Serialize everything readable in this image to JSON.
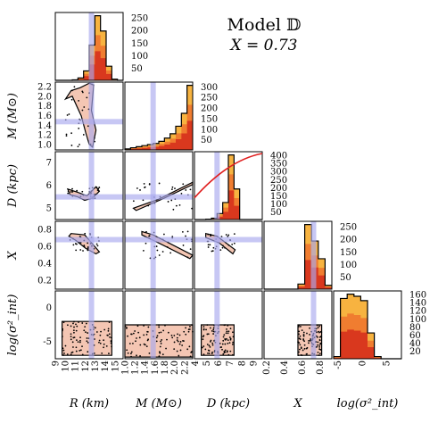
{
  "title": "Model 𝔻",
  "subtitle": "X = 0.73",
  "chart_data": {
    "type": "scatter",
    "kind": "corner plot (posterior distributions)",
    "parameters": [
      {
        "key": "R",
        "label": "R (km)",
        "range": [
          9,
          15
        ],
        "ticks": [
          "9",
          "10",
          "11",
          "12",
          "13",
          "14",
          "15"
        ],
        "truth": 12.2
      },
      {
        "key": "M",
        "label": "M (M⊙)",
        "range": [
          1.0,
          2.2
        ],
        "ticks": [
          "1.0",
          "1.2",
          "1.4",
          "1.6",
          "1.8",
          "2.0",
          "2.2"
        ],
        "truth": 1.5
      },
      {
        "key": "D",
        "label": "D (kpc)",
        "range": [
          4,
          10
        ],
        "ticks": [
          "4",
          "5",
          "6",
          "7",
          "8",
          "9"
        ],
        "truth": 6.0
      },
      {
        "key": "X",
        "label": "X",
        "range": [
          0,
          1
        ],
        "ticks": [
          "0.2",
          "0.4",
          "0.6",
          "0.8"
        ],
        "truth": 0.73
      },
      {
        "key": "logsig",
        "label": "log(σ²_int)",
        "range": [
          -10,
          10
        ],
        "ticks": [
          "-5",
          "0",
          "5"
        ],
        "truth": null
      }
    ],
    "left_axis_labels": [
      {
        "param": "M",
        "text": "M (M⊙)",
        "ticks": [
          "1.0",
          "1.2",
          "1.4",
          "1.6",
          "1.8",
          "2.0",
          "2.2"
        ]
      },
      {
        "param": "D",
        "text": "D (kpc)",
        "ticks": [
          "5",
          "6",
          "7"
        ]
      },
      {
        "param": "X",
        "text": "X",
        "ticks": [
          "0.2",
          "0.4",
          "0.6",
          "0.8"
        ]
      },
      {
        "param": "logsig",
        "text": "log(σ²_int)",
        "ticks": [
          "-5",
          "0"
        ]
      }
    ],
    "histogram_count_ticks": [
      [
        "50",
        "100",
        "150",
        "200",
        "250"
      ],
      [
        "50",
        "100",
        "150",
        "200",
        "250",
        "300"
      ],
      [
        "50",
        "100",
        "150",
        "200",
        "250",
        "300",
        "350",
        "400"
      ],
      [
        "50",
        "100",
        "150",
        "200",
        "250"
      ],
      [
        "20",
        "40",
        "60",
        "80",
        "100",
        "120",
        "140",
        "160"
      ]
    ],
    "histograms": [
      {
        "param": "R",
        "bins": [
          9.0,
          9.5,
          10.0,
          10.5,
          11.0,
          11.5,
          12.0,
          12.5,
          13.0,
          13.5,
          14.0,
          14.5,
          15.0
        ],
        "counts": [
          0,
          0,
          0,
          2,
          10,
          40,
          150,
          275,
          210,
          60,
          5,
          0,
          0
        ]
      },
      {
        "param": "M",
        "bins": [
          1.0,
          1.1,
          1.2,
          1.3,
          1.4,
          1.5,
          1.6,
          1.7,
          1.8,
          1.9,
          2.0,
          2.1,
          2.2
        ],
        "counts": [
          5,
          10,
          15,
          20,
          25,
          30,
          40,
          55,
          75,
          110,
          170,
          300
        ]
      },
      {
        "param": "D",
        "bins": [
          4.0,
          4.5,
          5.0,
          5.5,
          6.0,
          6.5,
          7.0,
          7.5,
          8.0,
          8.5,
          9.0,
          9.5,
          10.0
        ],
        "counts": [
          0,
          0,
          2,
          8,
          35,
          100,
          380,
          180,
          0,
          0,
          0,
          0
        ]
      },
      {
        "param": "X",
        "bins": [
          0.0,
          0.1,
          0.2,
          0.3,
          0.4,
          0.5,
          0.6,
          0.7,
          0.8,
          0.9,
          1.0
        ],
        "counts": [
          0,
          0,
          0,
          0,
          0,
          20,
          255,
          190,
          120,
          15
        ]
      },
      {
        "param": "logsig",
        "bins": [
          -10,
          -8,
          -6,
          -4,
          -2,
          0,
          2,
          4,
          6,
          8,
          10
        ],
        "counts": [
          5,
          140,
          150,
          145,
          135,
          60,
          5,
          0,
          0,
          0
        ]
      }
    ],
    "pairs": [
      {
        "x": "R",
        "y": "M",
        "shape": "curved band, low R at M 1.0-1.9, bending to R~12 at M 2.1"
      },
      {
        "x": "R",
        "y": "D",
        "shape": "thin wedge from R~10 to 13, D 5.8-6.8"
      },
      {
        "x": "M",
        "y": "D",
        "shape": "narrow diagonal band rising from (1.15, 5.0) to (2.2, 7.3)"
      },
      {
        "x": "R",
        "y": "X",
        "shape": "narrow band R 10-13, X 0.55-0.85"
      },
      {
        "x": "M",
        "y": "X",
        "shape": "diagonal band falling from (1.3, 0.85) to (2.2, 0.5)"
      },
      {
        "x": "D",
        "y": "X",
        "shape": "band falling from (5, 0.8) to (7.5, 0.55)"
      },
      {
        "x": "R",
        "y": "logsig",
        "shape": "broad rectangle R 9.5-14, logsig -9 to 1"
      },
      {
        "x": "M",
        "y": "logsig",
        "shape": "broad rectangle M 1.0-2.2, logsig -9 to 0"
      },
      {
        "x": "D",
        "y": "logsig",
        "shape": "rectangle D 4.5-7.5, logsig -9 to 0"
      },
      {
        "x": "X",
        "y": "logsig",
        "shape": "rectangle X 0.5-0.85, logsig -9 to 0"
      }
    ],
    "red_curve": {
      "panel": "D histogram",
      "description": "red line rising across panel from lower left to upper right"
    },
    "colors": {
      "hist_dark": "#d9381e",
      "hist_mid": "#f07d30",
      "hist_light": "#f7b340",
      "truth": "#a9a9ee",
      "contour": "#000000",
      "scatter_fill": "#f4c6b3",
      "red_curve": "#e02020"
    }
  }
}
